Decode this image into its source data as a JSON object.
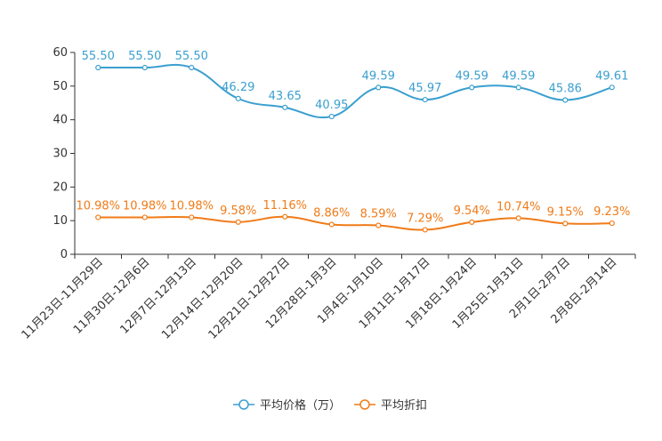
{
  "chart_data": {
    "type": "line",
    "title": "",
    "xlabel": "",
    "ylabel": "",
    "ylim": [
      0,
      60
    ],
    "yticks": [
      0,
      10,
      20,
      30,
      40,
      50,
      60
    ],
    "categories": [
      "11月23日-11月29日",
      "11月30日-12月6日",
      "12月7日-12月13日",
      "12月14日-12月20日",
      "12月21日-12月27日",
      "12月28日-1月3日",
      "1月4日-1月10日",
      "1月11日-1月17日",
      "1月18日-1月24日",
      "1月25日-1月31日",
      "2月1日-2月7日",
      "2月8日-2月14日"
    ],
    "series": [
      {
        "name": "平均价格（万）",
        "color": "#3a9fcf",
        "values": [
          55.5,
          55.5,
          55.5,
          46.29,
          43.65,
          40.95,
          49.59,
          45.97,
          49.59,
          49.59,
          45.86,
          49.61
        ],
        "labels": [
          "55.50",
          "55.50",
          "55.50",
          "46.29",
          "43.65",
          "40.95",
          "49.59",
          "45.97",
          "49.59",
          "49.59",
          "45.86",
          "49.61"
        ]
      },
      {
        "name": "平均折扣",
        "color": "#f07b18",
        "values": [
          10.98,
          10.98,
          10.98,
          9.58,
          11.16,
          8.86,
          8.59,
          7.29,
          9.54,
          10.74,
          9.15,
          9.23
        ],
        "labels": [
          "10.98%",
          "10.98%",
          "10.98%",
          "9.58%",
          "11.16%",
          "8.86%",
          "8.59%",
          "7.29%",
          "9.54%",
          "10.74%",
          "9.15%",
          "9.23%"
        ]
      }
    ],
    "legend_position": "bottom-center"
  }
}
